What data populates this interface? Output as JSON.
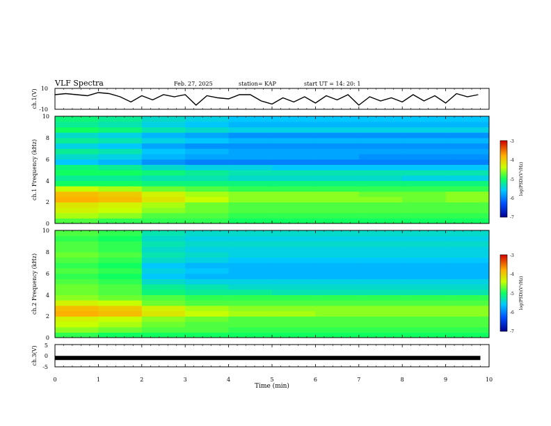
{
  "header": {
    "title": "VLF Spectra",
    "date": "Feb. 27, 2025",
    "station": "station= KAP",
    "start_ut": "start  UT =   14: 20: 1"
  },
  "chart_data": [
    {
      "type": "line",
      "ylabel": "ch.1(V)",
      "ylim": [
        -10,
        10
      ],
      "yticks": [
        "10",
        "-10"
      ],
      "x": [
        0,
        0.25,
        0.5,
        0.75,
        1.0,
        1.25,
        1.5,
        1.75,
        2.0,
        2.25,
        2.5,
        2.75,
        3.0,
        3.25,
        3.5,
        3.75,
        4.0,
        4.25,
        4.5,
        4.75,
        5.0,
        5.25,
        5.5,
        5.75,
        6.0,
        6.25,
        6.5,
        6.75,
        7.0,
        7.25,
        7.5,
        7.75,
        8.0,
        8.25,
        8.5,
        8.75,
        9.0,
        9.25,
        9.5,
        9.75
      ],
      "y": [
        4,
        5,
        4,
        3,
        6,
        5,
        2,
        -3,
        3,
        -1,
        4,
        2,
        4,
        -6,
        3,
        1,
        0,
        4,
        4,
        -2,
        -5,
        1,
        -3,
        2,
        -4,
        3,
        -1,
        4,
        -6,
        2,
        -2,
        1,
        -3,
        4,
        -2,
        3,
        -4,
        5,
        2,
        4
      ],
      "color": "#000000"
    },
    {
      "type": "heatmap",
      "ylabel": "ch.1  Frequency (kHz)",
      "ylim": [
        0,
        10
      ],
      "yticks": [
        "0",
        "2",
        "4",
        "6",
        "8",
        "10"
      ],
      "freq_kHz": [
        0.25,
        0.75,
        1.25,
        1.75,
        2.25,
        2.75,
        3.25,
        3.75,
        4.25,
        4.75,
        5.25,
        5.75,
        6.25,
        6.75,
        7.25,
        7.75,
        8.25,
        8.75,
        9.25,
        9.75
      ],
      "time_min": [
        0.5,
        1.5,
        2.5,
        3.5,
        4.5,
        5.5,
        6.5,
        7.5,
        8.5,
        9.5
      ],
      "log_psd_by_freq": [
        [
          -4.8,
          -4.9,
          -4.9,
          -4.9,
          -5.0,
          -5.0,
          -5.0,
          -5.0,
          -5.0,
          -5.0
        ],
        [
          -4.5,
          -4.6,
          -4.8,
          -4.8,
          -4.9,
          -4.9,
          -4.9,
          -4.9,
          -4.9,
          -4.9
        ],
        [
          -4.3,
          -4.4,
          -4.6,
          -4.7,
          -4.8,
          -4.8,
          -4.8,
          -4.8,
          -4.8,
          -4.8
        ],
        [
          -4.2,
          -4.3,
          -4.5,
          -4.7,
          -4.8,
          -4.8,
          -4.8,
          -4.8,
          -4.8,
          -4.8
        ],
        [
          -3.8,
          -3.9,
          -4.2,
          -4.4,
          -4.6,
          -4.6,
          -4.6,
          -4.6,
          -4.7,
          -4.6
        ],
        [
          -3.9,
          -4.0,
          -4.3,
          -4.5,
          -4.6,
          -4.6,
          -4.6,
          -4.7,
          -4.7,
          -4.6
        ],
        [
          -4.4,
          -4.5,
          -4.7,
          -4.8,
          -4.9,
          -4.9,
          -4.9,
          -4.9,
          -4.9,
          -4.9
        ],
        [
          -5.0,
          -5.0,
          -5.1,
          -5.1,
          -5.1,
          -5.1,
          -5.1,
          -5.1,
          -5.1,
          -5.1
        ],
        [
          -5.2,
          -5.2,
          -5.3,
          -5.3,
          -5.4,
          -5.4,
          -5.4,
          -5.4,
          -5.5,
          -5.5
        ],
        [
          -5.0,
          -5.0,
          -5.1,
          -5.2,
          -5.3,
          -5.3,
          -5.3,
          -5.3,
          -5.3,
          -5.3
        ],
        [
          -5.1,
          -5.2,
          -5.4,
          -5.5,
          -5.5,
          -5.6,
          -5.6,
          -5.6,
          -5.6,
          -5.6
        ],
        [
          -5.6,
          -5.7,
          -5.9,
          -6.0,
          -6.0,
          -6.0,
          -6.0,
          -6.0,
          -6.0,
          -6.0
        ],
        [
          -5.4,
          -5.5,
          -5.7,
          -5.8,
          -5.8,
          -5.8,
          -5.8,
          -5.9,
          -5.9,
          -5.9
        ],
        [
          -5.2,
          -5.3,
          -5.6,
          -5.7,
          -5.8,
          -5.8,
          -5.8,
          -5.8,
          -5.8,
          -5.8
        ],
        [
          -5.5,
          -5.6,
          -5.8,
          -5.9,
          -5.9,
          -5.9,
          -5.9,
          -5.9,
          -5.9,
          -5.9
        ],
        [
          -5.2,
          -5.3,
          -5.5,
          -5.6,
          -5.7,
          -5.7,
          -5.7,
          -5.7,
          -5.7,
          -5.7
        ],
        [
          -5.4,
          -5.5,
          -5.7,
          -5.8,
          -5.9,
          -5.9,
          -5.9,
          -5.9,
          -5.9,
          -5.9
        ],
        [
          -5.0,
          -5.1,
          -5.3,
          -5.4,
          -5.5,
          -5.5,
          -5.5,
          -5.5,
          -5.5,
          -5.5
        ],
        [
          -5.2,
          -5.3,
          -5.5,
          -5.6,
          -5.7,
          -5.7,
          -5.7,
          -5.7,
          -5.7,
          -5.7
        ],
        [
          -5.1,
          -5.2,
          -5.4,
          -5.5,
          -5.6,
          -5.6,
          -5.6,
          -5.6,
          -5.6,
          -5.6
        ]
      ],
      "colorbar": {
        "label": "log(PSD)(V²/Hz)",
        "range": [
          -7,
          -3
        ],
        "ticks": [
          "-3",
          "-4",
          "-5",
          "-6",
          "-7"
        ]
      }
    },
    {
      "type": "heatmap",
      "ylabel": "ch.2  Frequency (kHz)",
      "ylim": [
        0,
        10
      ],
      "yticks": [
        "0",
        "2",
        "4",
        "6",
        "8",
        "10"
      ],
      "freq_kHz": [
        0.25,
        0.75,
        1.25,
        1.75,
        2.25,
        2.75,
        3.25,
        3.75,
        4.25,
        4.75,
        5.25,
        5.75,
        6.25,
        6.75,
        7.25,
        7.75,
        8.25,
        8.75,
        9.25,
        9.75
      ],
      "time_min": [
        0.5,
        1.5,
        2.5,
        3.5,
        4.5,
        5.5,
        6.5,
        7.5,
        8.5,
        9.5
      ],
      "log_psd_by_freq": [
        [
          -4.9,
          -5.0,
          -5.0,
          -5.0,
          -5.0,
          -5.0,
          -5.0,
          -5.0,
          -5.0,
          -5.0
        ],
        [
          -4.6,
          -4.7,
          -4.8,
          -4.8,
          -4.9,
          -4.9,
          -4.9,
          -4.9,
          -4.9,
          -4.9
        ],
        [
          -4.4,
          -4.5,
          -4.7,
          -4.8,
          -4.8,
          -4.8,
          -4.8,
          -4.8,
          -4.8,
          -4.8
        ],
        [
          -4.3,
          -4.4,
          -4.6,
          -4.7,
          -4.8,
          -4.8,
          -4.8,
          -4.8,
          -4.8,
          -4.8
        ],
        [
          -3.8,
          -3.9,
          -4.2,
          -4.4,
          -4.5,
          -4.5,
          -4.6,
          -4.6,
          -4.6,
          -4.6
        ],
        [
          -3.9,
          -4.0,
          -4.3,
          -4.5,
          -4.6,
          -4.6,
          -4.6,
          -4.6,
          -4.6,
          -4.6
        ],
        [
          -4.3,
          -4.4,
          -4.7,
          -4.8,
          -4.8,
          -4.8,
          -4.8,
          -4.8,
          -4.8,
          -4.8
        ],
        [
          -4.6,
          -4.7,
          -4.8,
          -4.9,
          -4.9,
          -4.9,
          -4.9,
          -4.9,
          -4.9,
          -4.9
        ],
        [
          -4.7,
          -4.8,
          -5.1,
          -5.2,
          -5.2,
          -5.3,
          -5.3,
          -5.3,
          -5.3,
          -5.3
        ],
        [
          -4.7,
          -4.8,
          -5.2,
          -5.3,
          -5.4,
          -5.4,
          -5.4,
          -5.4,
          -5.4,
          -5.4
        ],
        [
          -4.8,
          -4.9,
          -5.4,
          -5.5,
          -5.5,
          -5.5,
          -5.5,
          -5.5,
          -5.5,
          -5.5
        ],
        [
          -4.9,
          -5.0,
          -5.6,
          -5.7,
          -5.7,
          -5.7,
          -5.7,
          -5.7,
          -5.7,
          -5.7
        ],
        [
          -4.8,
          -4.9,
          -5.5,
          -5.6,
          -5.7,
          -5.7,
          -5.7,
          -5.7,
          -5.7,
          -5.7
        ],
        [
          -4.9,
          -5.0,
          -5.6,
          -5.7,
          -5.7,
          -5.7,
          -5.7,
          -5.7,
          -5.7,
          -5.7
        ],
        [
          -4.8,
          -4.9,
          -5.4,
          -5.5,
          -5.6,
          -5.6,
          -5.6,
          -5.6,
          -5.6,
          -5.6
        ],
        [
          -4.7,
          -4.8,
          -5.3,
          -5.4,
          -5.5,
          -5.5,
          -5.5,
          -5.5,
          -5.5,
          -5.5
        ],
        [
          -4.8,
          -4.9,
          -5.4,
          -5.5,
          -5.5,
          -5.5,
          -5.5,
          -5.5,
          -5.5,
          -5.5
        ],
        [
          -4.8,
          -4.9,
          -5.3,
          -5.4,
          -5.4,
          -5.4,
          -5.4,
          -5.4,
          -5.4,
          -5.4
        ],
        [
          -4.9,
          -5.0,
          -5.4,
          -5.5,
          -5.5,
          -5.5,
          -5.5,
          -5.5,
          -5.5,
          -5.5
        ],
        [
          -4.8,
          -4.9,
          -5.3,
          -5.4,
          -5.4,
          -5.4,
          -5.4,
          -5.4,
          -5.4,
          -5.4
        ]
      ],
      "colorbar": {
        "label": "log(PSD)(V²/Hz)",
        "range": [
          -7,
          -3
        ],
        "ticks": [
          "-3",
          "-4",
          "-5",
          "-6",
          "-7"
        ]
      }
    },
    {
      "type": "line",
      "ylabel": "ch.3(V)",
      "ylim": [
        -5,
        5
      ],
      "yticks": [
        "5",
        "0",
        "-5"
      ],
      "x": [
        0,
        9.8
      ],
      "y": [
        -1,
        -1
      ],
      "color": "#000000"
    }
  ],
  "xaxis": {
    "label": "Time  (min)",
    "range": [
      0,
      10
    ],
    "ticks": [
      "0",
      "1",
      "2",
      "3",
      "4",
      "5",
      "6",
      "7",
      "8",
      "9",
      "10"
    ]
  }
}
